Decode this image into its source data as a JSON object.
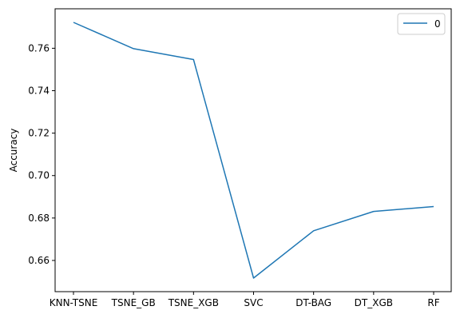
{
  "chart_data": {
    "type": "line",
    "title": "",
    "xlabel": "",
    "ylabel": "Accuracy",
    "categories": [
      "KNN-TSNE",
      "TSNE_GB",
      "TSNE_XGB",
      "SVC",
      "DT-BAG",
      "DT_XGB",
      "RF"
    ],
    "series": [
      {
        "name": "0",
        "color": "#1f77b4",
        "values": [
          0.7722,
          0.7598,
          0.7547,
          0.6517,
          0.674,
          0.6831,
          0.6854
        ]
      }
    ],
    "ylim": [
      0.6453,
      0.7786
    ],
    "yticks": [
      0.66,
      0.68,
      0.7,
      0.72,
      0.74,
      0.76
    ],
    "ytick_labels": [
      "0.66",
      "0.68",
      "0.70",
      "0.72",
      "0.74",
      "0.76"
    ],
    "grid": false,
    "legend": "top-right"
  }
}
